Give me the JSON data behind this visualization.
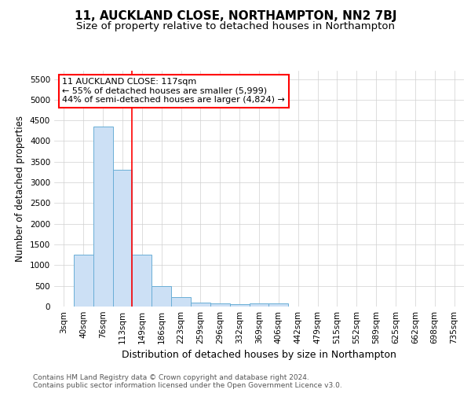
{
  "title": "11, AUCKLAND CLOSE, NORTHAMPTON, NN2 7BJ",
  "subtitle": "Size of property relative to detached houses in Northampton",
  "xlabel": "Distribution of detached houses by size in Northampton",
  "ylabel": "Number of detached properties",
  "footer_line1": "Contains HM Land Registry data © Crown copyright and database right 2024.",
  "footer_line2": "Contains public sector information licensed under the Open Government Licence v3.0.",
  "categories": [
    "3sqm",
    "40sqm",
    "76sqm",
    "113sqm",
    "149sqm",
    "186sqm",
    "223sqm",
    "259sqm",
    "296sqm",
    "332sqm",
    "369sqm",
    "406sqm",
    "442sqm",
    "479sqm",
    "515sqm",
    "552sqm",
    "589sqm",
    "625sqm",
    "662sqm",
    "698sqm",
    "735sqm"
  ],
  "values": [
    0,
    1260,
    4350,
    3300,
    1260,
    490,
    225,
    100,
    75,
    50,
    75,
    75,
    0,
    0,
    0,
    0,
    0,
    0,
    0,
    0,
    0
  ],
  "bar_color": "#cce0f5",
  "bar_edge_color": "#6aaed6",
  "red_line_x": 3.5,
  "annotation_text": "11 AUCKLAND CLOSE: 117sqm\n← 55% of detached houses are smaller (5,999)\n44% of semi-detached houses are larger (4,824) →",
  "ylim": [
    0,
    5700
  ],
  "yticks": [
    0,
    500,
    1000,
    1500,
    2000,
    2500,
    3000,
    3500,
    4000,
    4500,
    5000,
    5500
  ],
  "background_color": "#ffffff",
  "grid_color": "#d0d0d0",
  "title_fontsize": 11,
  "subtitle_fontsize": 9.5,
  "ylabel_fontsize": 8.5,
  "xlabel_fontsize": 9,
  "tick_fontsize": 7.5,
  "footer_fontsize": 6.5,
  "annotation_fontsize": 8
}
